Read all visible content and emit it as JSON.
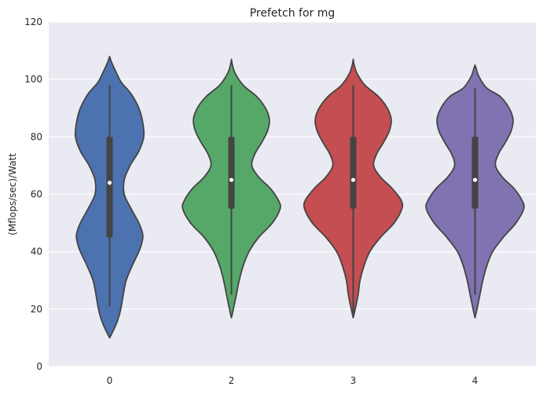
{
  "chart_data": {
    "type": "violin",
    "title": "Prefetch for mg",
    "xlabel": "",
    "ylabel": "(Mflops/sec)/Watt",
    "ylim": [
      0,
      120
    ],
    "yticks": [
      "0",
      "20",
      "40",
      "60",
      "80",
      "100",
      "120"
    ],
    "categories": [
      "0",
      "2",
      "3",
      "4"
    ],
    "grid": true,
    "colors": {
      "background": "#EAEAF2",
      "grid": "#FFFFFF",
      "outline": "#444444",
      "series": [
        "#4C72B0",
        "#55A868",
        "#C44E52",
        "#8172B2"
      ]
    },
    "series": [
      {
        "category": "0",
        "min": 21,
        "q1": 45,
        "median": 64,
        "q3": 80,
        "max": 98,
        "profile": [
          [
            10,
            0.0
          ],
          [
            12,
            0.03
          ],
          [
            15,
            0.07
          ],
          [
            18,
            0.1
          ],
          [
            21,
            0.12
          ],
          [
            25,
            0.14
          ],
          [
            30,
            0.17
          ],
          [
            35,
            0.23
          ],
          [
            40,
            0.3
          ],
          [
            43,
            0.33
          ],
          [
            46,
            0.34
          ],
          [
            50,
            0.3
          ],
          [
            55,
            0.22
          ],
          [
            60,
            0.15
          ],
          [
            65,
            0.15
          ],
          [
            70,
            0.21
          ],
          [
            75,
            0.3
          ],
          [
            80,
            0.35
          ],
          [
            85,
            0.34
          ],
          [
            90,
            0.3
          ],
          [
            95,
            0.22
          ],
          [
            99,
            0.12
          ],
          [
            103,
            0.06
          ],
          [
            106,
            0.02
          ],
          [
            108,
            0.0
          ]
        ]
      },
      {
        "category": "2",
        "min": 25,
        "q1": 55,
        "median": 65,
        "q3": 80,
        "max": 98,
        "profile": [
          [
            17,
            0.0
          ],
          [
            20,
            0.02
          ],
          [
            25,
            0.05
          ],
          [
            30,
            0.08
          ],
          [
            35,
            0.12
          ],
          [
            40,
            0.18
          ],
          [
            45,
            0.28
          ],
          [
            50,
            0.42
          ],
          [
            55,
            0.5
          ],
          [
            58,
            0.48
          ],
          [
            62,
            0.4
          ],
          [
            66,
            0.28
          ],
          [
            70,
            0.21
          ],
          [
            74,
            0.24
          ],
          [
            78,
            0.31
          ],
          [
            82,
            0.37
          ],
          [
            86,
            0.39
          ],
          [
            90,
            0.35
          ],
          [
            94,
            0.26
          ],
          [
            98,
            0.12
          ],
          [
            102,
            0.04
          ],
          [
            105,
            0.01
          ],
          [
            107,
            0.0
          ]
        ]
      },
      {
        "category": "3",
        "min": 18,
        "q1": 55,
        "median": 65,
        "q3": 80,
        "max": 98,
        "profile": [
          [
            17,
            0.0
          ],
          [
            20,
            0.02
          ],
          [
            25,
            0.05
          ],
          [
            30,
            0.07
          ],
          [
            35,
            0.11
          ],
          [
            40,
            0.17
          ],
          [
            45,
            0.28
          ],
          [
            50,
            0.42
          ],
          [
            55,
            0.5
          ],
          [
            58,
            0.49
          ],
          [
            62,
            0.4
          ],
          [
            66,
            0.28
          ],
          [
            70,
            0.21
          ],
          [
            74,
            0.24
          ],
          [
            78,
            0.31
          ],
          [
            82,
            0.37
          ],
          [
            86,
            0.39
          ],
          [
            90,
            0.35
          ],
          [
            94,
            0.26
          ],
          [
            98,
            0.12
          ],
          [
            102,
            0.04
          ],
          [
            105,
            0.01
          ],
          [
            107,
            0.0
          ]
        ]
      },
      {
        "category": "4",
        "min": 25,
        "q1": 55,
        "median": 65,
        "q3": 80,
        "max": 97,
        "profile": [
          [
            17,
            0.0
          ],
          [
            20,
            0.02
          ],
          [
            25,
            0.05
          ],
          [
            30,
            0.08
          ],
          [
            35,
            0.12
          ],
          [
            40,
            0.18
          ],
          [
            45,
            0.29
          ],
          [
            50,
            0.42
          ],
          [
            55,
            0.5
          ],
          [
            58,
            0.48
          ],
          [
            62,
            0.4
          ],
          [
            66,
            0.28
          ],
          [
            70,
            0.21
          ],
          [
            74,
            0.24
          ],
          [
            78,
            0.31
          ],
          [
            82,
            0.37
          ],
          [
            86,
            0.39
          ],
          [
            90,
            0.35
          ],
          [
            94,
            0.26
          ],
          [
            97,
            0.12
          ],
          [
            101,
            0.04
          ],
          [
            104,
            0.01
          ],
          [
            105,
            0.0
          ]
        ]
      }
    ]
  }
}
